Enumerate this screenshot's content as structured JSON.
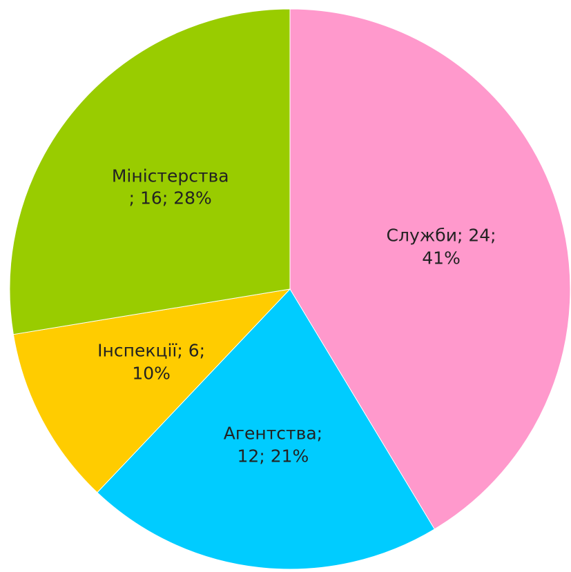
{
  "chart_data": {
    "type": "pie",
    "values": [
      24,
      12,
      6,
      16
    ],
    "value_labels": [
      "Служби; 24; 41%",
      "Агентства; 12; 21%",
      "Інспекції; 6; 10%",
      "Міністерства; 16; 28%"
    ],
    "colors": [
      "#ff99cc",
      "#00ccff",
      "#ffcc00",
      "#99cc00"
    ]
  }
}
